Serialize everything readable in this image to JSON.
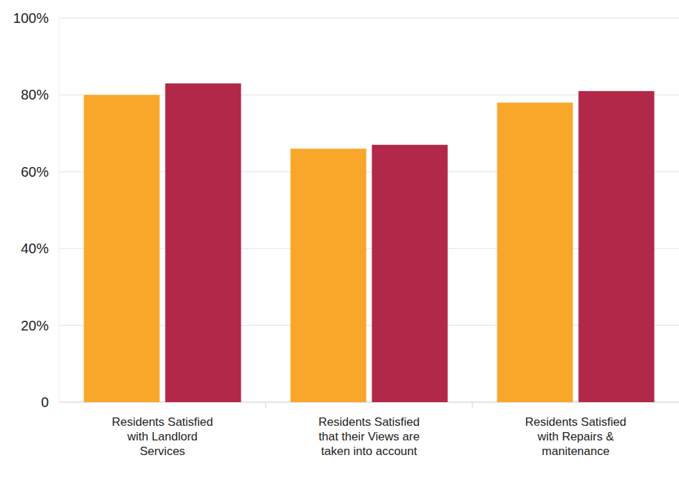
{
  "chart_data": {
    "type": "bar",
    "categories": [
      "Residents Satisfied with Landlord Services",
      "Residents Satisfied that their Views are taken into account",
      "Residents Satisfied with Repairs & manitenance"
    ],
    "series": [
      {
        "color": "#f9a72b",
        "values": [
          80,
          66,
          78
        ]
      },
      {
        "color": "#b22848",
        "values": [
          83,
          67,
          81
        ]
      }
    ],
    "ylim": [
      0,
      100
    ],
    "yticks": [
      0,
      {
        "value": 20,
        "label": "20%"
      },
      {
        "value": 40,
        "label": "40%"
      },
      {
        "value": 60,
        "label": "60%"
      },
      {
        "value": 80,
        "label": "80%"
      },
      {
        "value": 100,
        "label": "100%"
      }
    ],
    "grid": true
  }
}
